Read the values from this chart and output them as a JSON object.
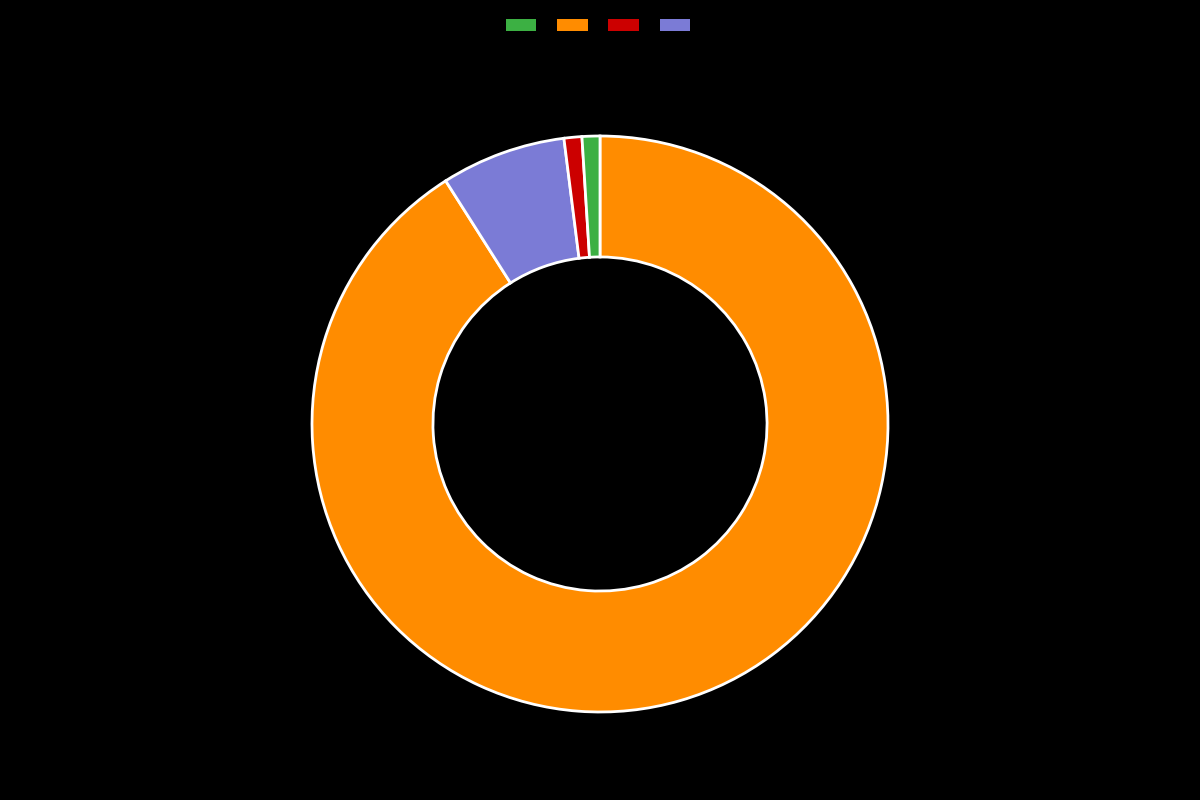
{
  "values": [
    91,
    7,
    1,
    1
  ],
  "colors": [
    "#FF8C00",
    "#7B7BD6",
    "#CC0000",
    "#3CB043"
  ],
  "legend_colors": [
    "#3CB043",
    "#FF8C00",
    "#CC0000",
    "#7B7BD6"
  ],
  "legend_labels": [
    "",
    "",
    "",
    ""
  ],
  "background_color": "#000000",
  "wedge_linewidth": 2.0,
  "wedge_linecolor": "#ffffff",
  "donut_width": 0.42,
  "startangle": 90
}
